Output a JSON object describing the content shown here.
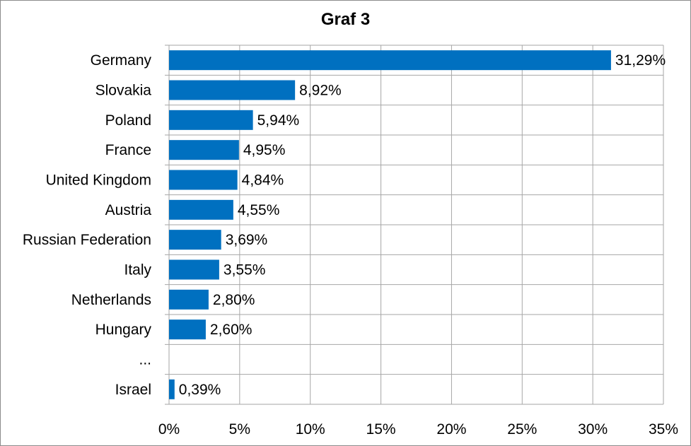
{
  "chart_data": {
    "type": "bar",
    "orientation": "horizontal",
    "title": "Graf 3",
    "xlabel": "",
    "ylabel": "",
    "categories": [
      "Germany",
      "Slovakia",
      "Poland",
      "France",
      "United Kingdom",
      "Austria",
      "Russian Federation",
      "Italy",
      "Netherlands",
      "Hungary",
      "...",
      "Israel"
    ],
    "values": [
      31.29,
      8.92,
      5.94,
      4.95,
      4.84,
      4.55,
      3.69,
      3.55,
      2.8,
      2.6,
      null,
      0.39
    ],
    "data_labels": [
      "31,29%",
      "8,92%",
      "5,94%",
      "4,95%",
      "4,84%",
      "4,55%",
      "3,69%",
      "3,55%",
      "2,80%",
      "2,60%",
      "",
      "0,39%"
    ],
    "xlim": [
      0,
      35
    ],
    "xticks": [
      0,
      5,
      10,
      15,
      20,
      25,
      30,
      35
    ],
    "xtick_labels": [
      "0%",
      "5%",
      "10%",
      "15%",
      "20%",
      "25%",
      "30%",
      "35%"
    ],
    "grid": true,
    "legend": "none",
    "bar_color": "#0070C0",
    "grid_color": "#A6A6A6"
  }
}
